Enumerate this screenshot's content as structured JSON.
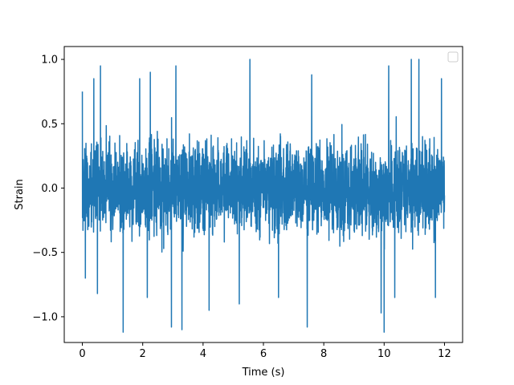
{
  "chart_data": {
    "type": "line",
    "title": "",
    "xlabel": "Time (s)",
    "ylabel": "Strain",
    "xlim": [
      -0.6,
      12.6
    ],
    "ylim": [
      -1.2,
      1.1
    ],
    "xticks": [
      0,
      2,
      4,
      6,
      8,
      10,
      12
    ],
    "xtick_labels": [
      "0",
      "2",
      "4",
      "6",
      "8",
      "10",
      "12"
    ],
    "yticks": [
      -1.0,
      -0.5,
      0.0,
      0.5,
      1.0
    ],
    "ytick_labels": [
      "−1.0",
      "−0.5",
      "0.0",
      "0.5",
      "1.0"
    ],
    "grid": false,
    "legend": {
      "location": "upper right",
      "entries": []
    },
    "series": [
      {
        "color": "#1f77b4",
        "x_range": [
          0,
          12
        ],
        "description_values": {
          "typical_min": -0.55,
          "typical_max": 0.55,
          "max": 1.0,
          "min": -1.12
        },
        "peaks": [
          {
            "x": 0.0,
            "y": 0.75
          },
          {
            "x": 0.38,
            "y": 0.85
          },
          {
            "x": 0.6,
            "y": 0.95
          },
          {
            "x": 1.9,
            "y": 0.85
          },
          {
            "x": 2.25,
            "y": 0.9
          },
          {
            "x": 3.1,
            "y": 0.95
          },
          {
            "x": 5.55,
            "y": 1.0
          },
          {
            "x": 7.6,
            "y": 0.88
          },
          {
            "x": 10.15,
            "y": 0.95
          },
          {
            "x": 10.9,
            "y": 1.0
          },
          {
            "x": 11.15,
            "y": 1.0
          },
          {
            "x": 11.9,
            "y": 0.85
          }
        ],
        "troughs": [
          {
            "x": 0.1,
            "y": -0.7
          },
          {
            "x": 0.5,
            "y": -0.82
          },
          {
            "x": 1.35,
            "y": -1.12
          },
          {
            "x": 2.15,
            "y": -0.85
          },
          {
            "x": 2.95,
            "y": -1.08
          },
          {
            "x": 3.3,
            "y": -1.1
          },
          {
            "x": 4.2,
            "y": -0.95
          },
          {
            "x": 5.2,
            "y": -0.9
          },
          {
            "x": 6.5,
            "y": -0.85
          },
          {
            "x": 7.45,
            "y": -1.08
          },
          {
            "x": 9.9,
            "y": -0.97
          },
          {
            "x": 10.0,
            "y": -1.12
          },
          {
            "x": 10.35,
            "y": -0.85
          },
          {
            "x": 11.7,
            "y": -0.85
          }
        ]
      }
    ]
  }
}
